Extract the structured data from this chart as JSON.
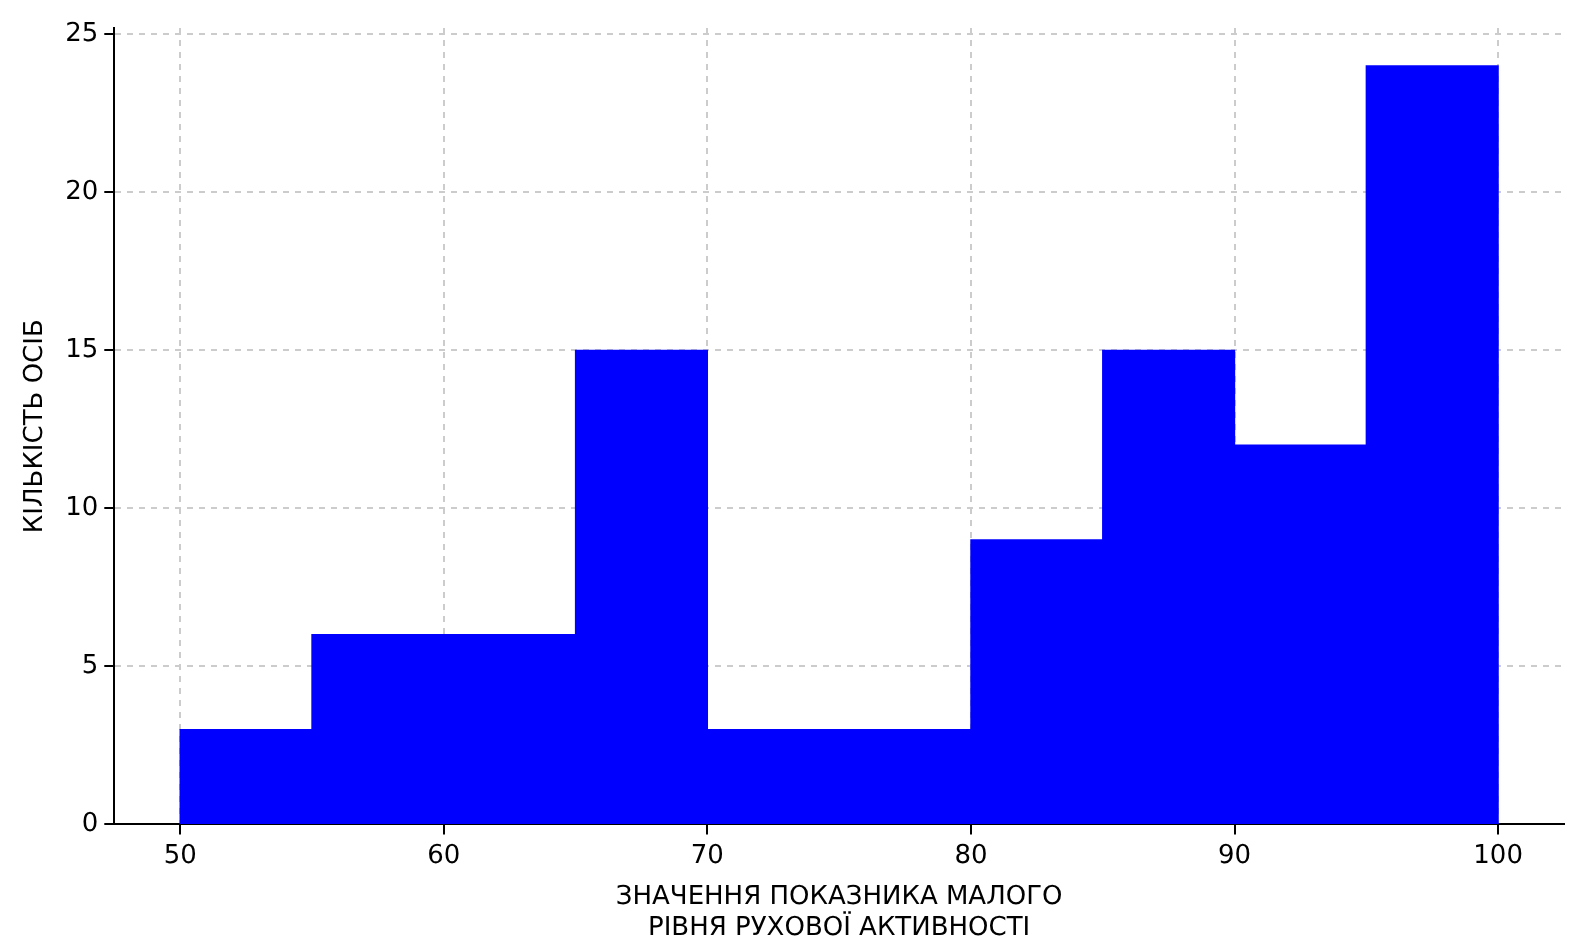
{
  "chart_data": {
    "type": "histogram",
    "xlabel": "ЗНАЧЕННЯ ПОКАЗНИКА МАЛОГО\nРІВНЯ РУХОВОЇ АКТИВНОСТІ",
    "ylabel": "КІЛЬКІСТЬ ОСІБ",
    "bins": [
      50,
      55,
      60,
      65,
      70,
      75,
      80,
      85,
      90,
      95,
      100
    ],
    "values": [
      3,
      6,
      6,
      15,
      3,
      3,
      9,
      15,
      12,
      24
    ],
    "color": "#0000ff",
    "xlim": [
      47.5,
      102.5
    ],
    "xticks": [
      50,
      60,
      70,
      80,
      90,
      100
    ],
    "ylim": [
      0,
      25.2
    ],
    "yticks": [
      0,
      5,
      10,
      15,
      20,
      25
    ],
    "grid": true
  }
}
